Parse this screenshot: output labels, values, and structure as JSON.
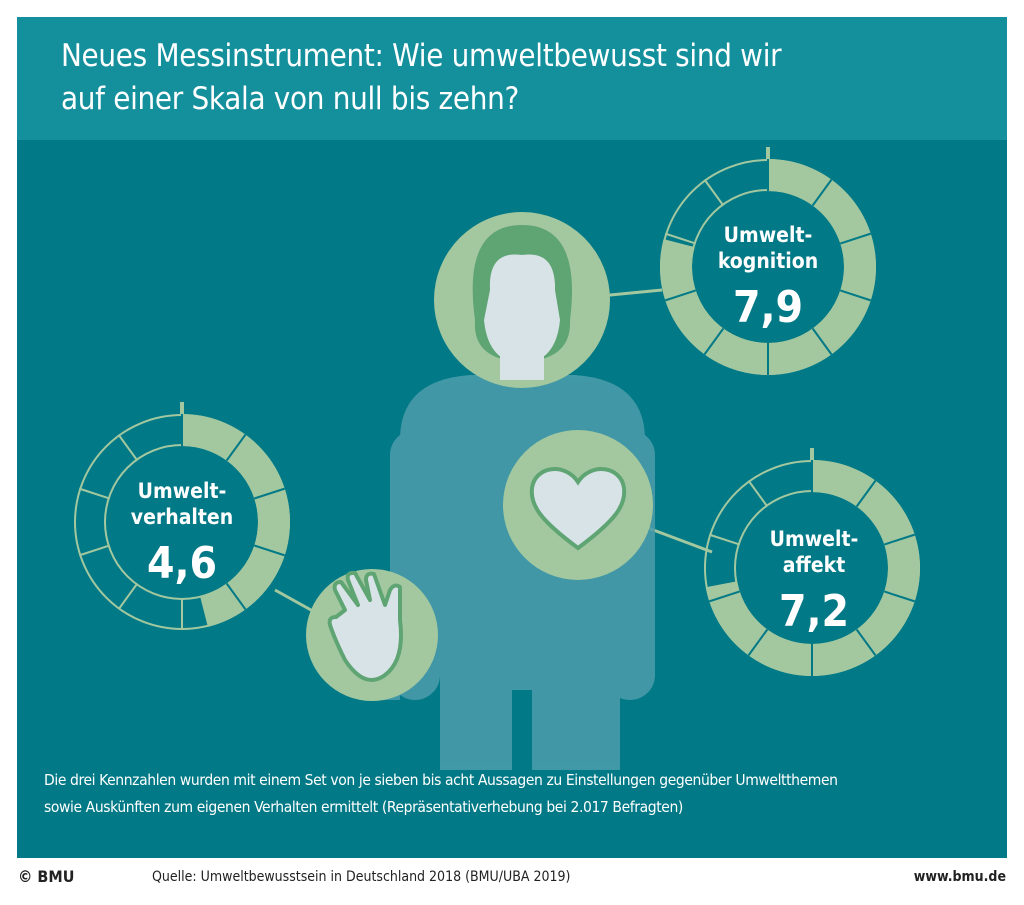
{
  "header": {
    "title_line1": "Neues Messinstrument: Wie umweltbewusst sind wir",
    "title_line2": "auf einer Skala von null bis zehn?"
  },
  "colors": {
    "panel": "#027986",
    "header": "#14909d",
    "gauge_fill": "#a3c8a0",
    "figure": "#5aa3b0"
  },
  "chart_data": {
    "type": "gauge",
    "scale": [
      0,
      10
    ],
    "gauges": [
      {
        "id": "kognition",
        "label_line1": "Umwelt-",
        "label_line2": "kognition",
        "display": "7,9",
        "value": 7.9
      },
      {
        "id": "verhalten",
        "label_line1": "Umwelt-",
        "label_line2": "verhalten",
        "display": "4,6",
        "value": 4.6
      },
      {
        "id": "affekt",
        "label_line1": "Umwelt-",
        "label_line2": "affekt",
        "display": "7,2",
        "value": 7.2
      }
    ]
  },
  "note": {
    "line1": "Die drei Kennzahlen wurden mit einem Set von je sieben bis acht Aussagen zu Einstellungen gegenüber Umweltthemen",
    "line2": "sowie Auskünften zum eigenen Verhalten ermittelt (Repräsentativerhebung bei 2.017 Befragten)"
  },
  "footer": {
    "copyright": "© BMU",
    "source": "Quelle: Umweltbewusstsein in Deutschland 2018 (BMU/UBA 2019)",
    "url": "www.bmu.de"
  }
}
